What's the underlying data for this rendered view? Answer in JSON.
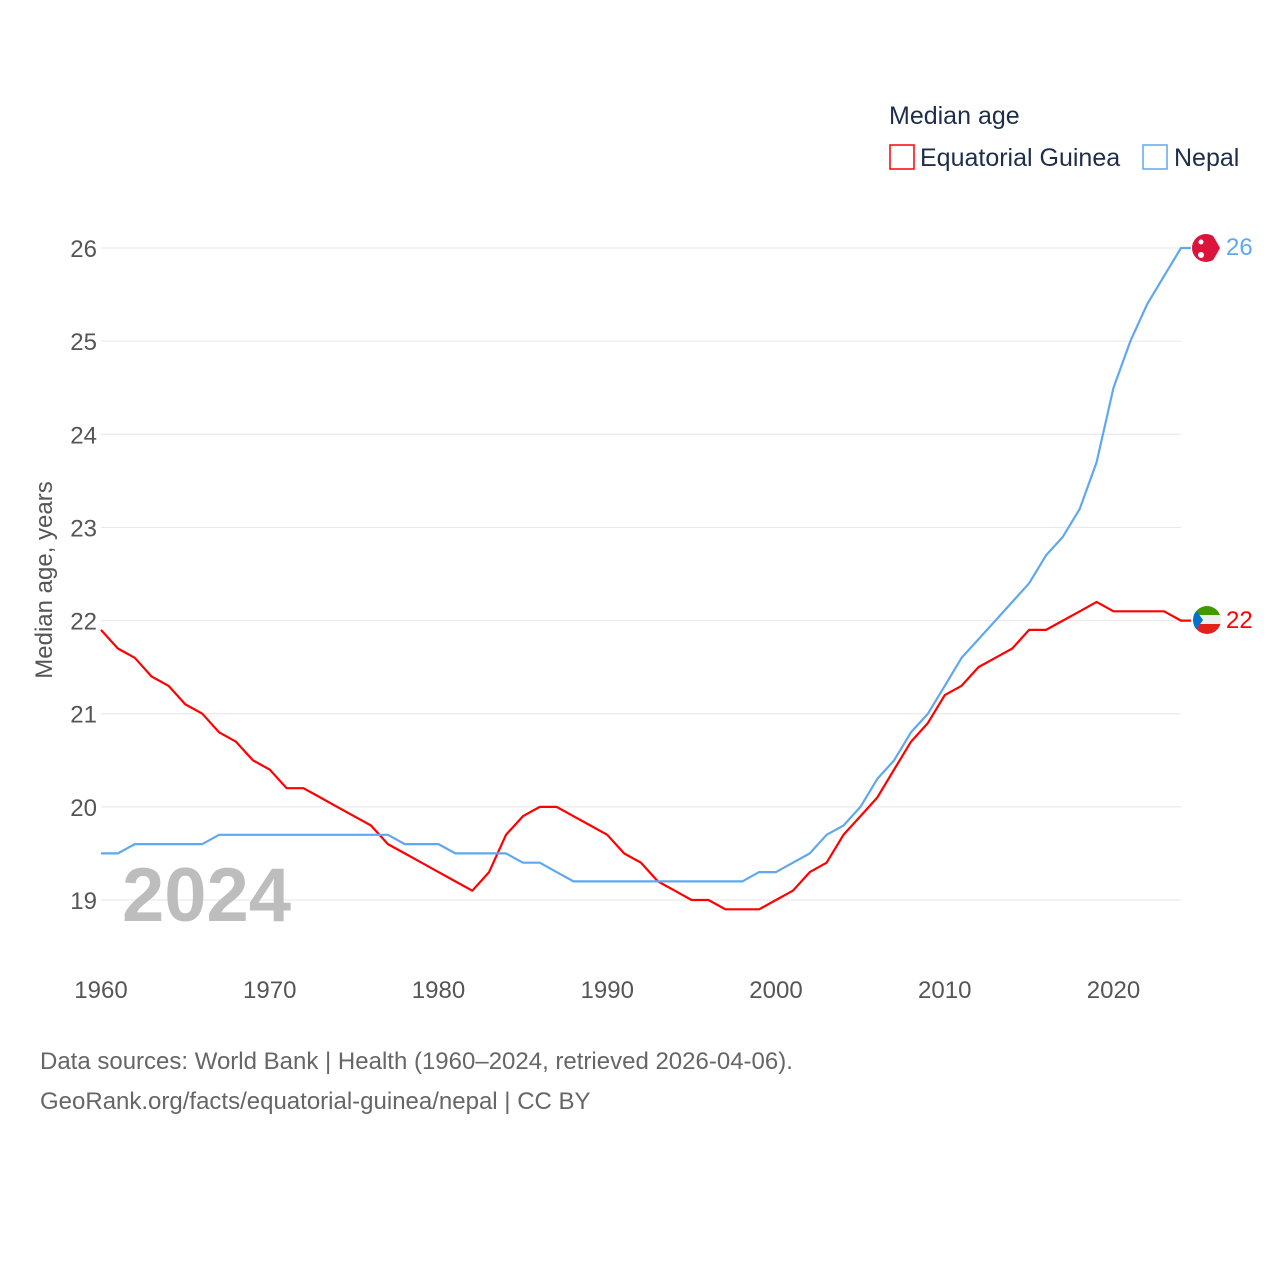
{
  "chart_data": {
    "type": "line",
    "title": "",
    "legend_title": "Median age",
    "legend_position": "top-right",
    "ylabel": "Median age, years",
    "xlabel": "",
    "xlim": [
      1960,
      2024
    ],
    "ylim": [
      19,
      26
    ],
    "x_ticks": [
      "1960",
      "1970",
      "1980",
      "1990",
      "2000",
      "2010",
      "2020"
    ],
    "y_ticks": [
      "19",
      "20",
      "21",
      "22",
      "23",
      "24",
      "25",
      "26"
    ],
    "grid": true,
    "watermark_year": "2024",
    "x": [
      1960,
      1961,
      1962,
      1963,
      1964,
      1965,
      1966,
      1967,
      1968,
      1969,
      1970,
      1971,
      1972,
      1973,
      1974,
      1975,
      1976,
      1977,
      1978,
      1979,
      1980,
      1981,
      1982,
      1983,
      1984,
      1985,
      1986,
      1987,
      1988,
      1989,
      1990,
      1991,
      1992,
      1993,
      1994,
      1995,
      1996,
      1997,
      1998,
      1999,
      2000,
      2001,
      2002,
      2003,
      2004,
      2005,
      2006,
      2007,
      2008,
      2009,
      2010,
      2011,
      2012,
      2013,
      2014,
      2015,
      2016,
      2017,
      2018,
      2019,
      2020,
      2021,
      2022,
      2023,
      2024
    ],
    "series": [
      {
        "name": "Equatorial Guinea",
        "color": "#ff0000",
        "end_label": "22",
        "values": [
          21.9,
          21.7,
          21.6,
          21.4,
          21.3,
          21.1,
          21.0,
          20.8,
          20.7,
          20.5,
          20.4,
          20.2,
          20.2,
          20.1,
          20.0,
          19.9,
          19.8,
          19.6,
          19.5,
          19.4,
          19.3,
          19.2,
          19.1,
          19.3,
          19.7,
          19.9,
          20.0,
          20.0,
          19.9,
          19.8,
          19.7,
          19.5,
          19.4,
          19.2,
          19.1,
          19.0,
          19.0,
          18.9,
          18.9,
          18.9,
          19.0,
          19.1,
          19.3,
          19.4,
          19.7,
          19.9,
          20.1,
          20.4,
          20.7,
          20.9,
          21.2,
          21.3,
          21.5,
          21.6,
          21.7,
          21.9,
          21.9,
          22.0,
          22.1,
          22.2,
          22.1,
          22.1,
          22.1,
          22.1,
          22.0
        ]
      },
      {
        "name": "Nepal",
        "color": "#5fa8ee",
        "end_label": "26",
        "values": [
          19.5,
          19.5,
          19.6,
          19.6,
          19.6,
          19.6,
          19.6,
          19.7,
          19.7,
          19.7,
          19.7,
          19.7,
          19.7,
          19.7,
          19.7,
          19.7,
          19.7,
          19.7,
          19.6,
          19.6,
          19.6,
          19.5,
          19.5,
          19.5,
          19.5,
          19.4,
          19.4,
          19.3,
          19.2,
          19.2,
          19.2,
          19.2,
          19.2,
          19.2,
          19.2,
          19.2,
          19.2,
          19.2,
          19.2,
          19.3,
          19.3,
          19.4,
          19.5,
          19.7,
          19.8,
          20.0,
          20.3,
          20.5,
          20.8,
          21.0,
          21.3,
          21.6,
          21.8,
          22.0,
          22.2,
          22.4,
          22.7,
          22.9,
          23.2,
          23.7,
          24.5,
          25.0,
          25.4,
          25.7,
          26.0
        ]
      }
    ]
  },
  "footer": {
    "line1": "Data sources: World Bank | Health (1960–2024, retrieved 2026-04-06).",
    "line2": "GeoRank.org/facts/equatorial-guinea/nepal | CC BY"
  }
}
